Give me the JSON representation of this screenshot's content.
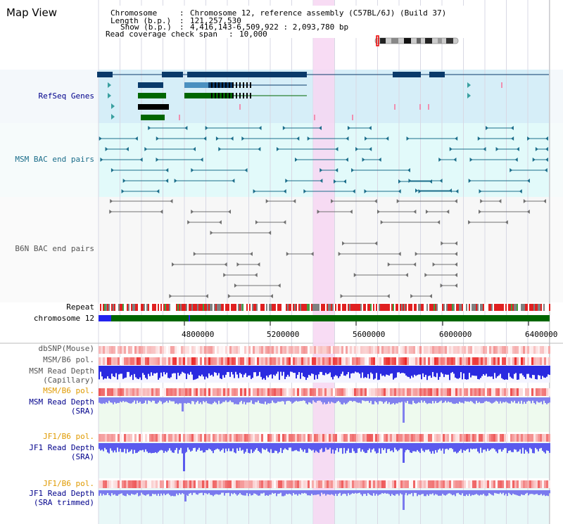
{
  "title": "Map View",
  "header": {
    "chromosome_label": "Chromosome",
    "chromosome_value": "Chromosome 12, reference assembly (C57BL/6J) (Build 37)",
    "length_label": "Length (b.p.)",
    "length_value": "121,257,530",
    "show_label": "Show (b.p.)",
    "show_value": "4,416,143-6,509,922 : 2,093,780 bp",
    "coverage_label": "Read coverage check span",
    "coverage_value": "10,000"
  },
  "tracks": {
    "refseq": "RefSeq Genes",
    "msm_bac": "MSM BAC end pairs",
    "b6n_bac": "B6N BAC end pairs",
    "repeat": "Repeat",
    "chromosome": "chromosome 12",
    "dbsnp": "dbSNP(Mouse)",
    "msm_b6_pol_1": "MSM/B6 pol.",
    "msm_read_depth_cap_1": "MSM Read Depth",
    "msm_read_depth_cap_2": "(Capillary)",
    "msm_b6_pol_2": "MSM/B6 pol.",
    "msm_read_depth_sra_1": "MSM Read Depth",
    "msm_read_depth_sra_2": "(SRA)",
    "jf1_b6_pol_1": "JF1/B6 pol.",
    "jf1_read_depth_1": "JF1 Read Depth",
    "jf1_read_depth_2": "(SRA)",
    "jf1_b6_pol_2": "JF1/B6 pol.",
    "jf1_read_depth_trim_1": "JF1 Read Depth",
    "jf1_read_depth_trim_2": "(SRA trimmed)"
  },
  "axis": {
    "ticks": [
      "4800000",
      "5200000",
      "5600000",
      "6000000",
      "6400000"
    ]
  },
  "colors": {
    "navy": "#00008b",
    "teal": "#1b6d8a",
    "refseq_bg": "#d6eef8",
    "msm_bg": "#e2fafa",
    "highlight": "#f7d6f2",
    "chrom_green": "#006600",
    "depth_blue": "#2222ee",
    "pol_red": "#ee2222",
    "snp_pink": "#f6a0a0"
  }
}
